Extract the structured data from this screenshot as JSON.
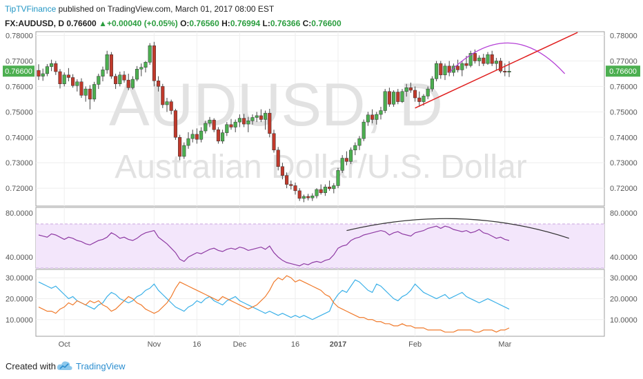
{
  "header": {
    "publisher": "TipTVFinance",
    "published_text": "published on TradingView.com, March 01, 2017 08:00 EST",
    "symbol": "FX:AUDUSD, D",
    "last": "0.76600",
    "change_arrow": "▲",
    "change": "+0.00040 (+0.05%)",
    "o_label": "O:",
    "o": "0.76560",
    "h_label": "H:",
    "h": "0.76994",
    "l_label": "L:",
    "l": "0.76366",
    "c_label": "C:",
    "c": "0.76600"
  },
  "watermark": {
    "symbol": "AUDUSD, D",
    "name": "Australian Dollar/U.S. Dollar"
  },
  "footer": {
    "created_with": "Created with",
    "brand": "TradingView"
  },
  "chart_data": [
    {
      "type": "candlestick",
      "ylim": [
        0.713,
        0.7815
      ],
      "yticks": [
        "0.78000",
        "0.77000",
        "0.76000",
        "0.75000",
        "0.74000",
        "0.73000",
        "0.72000"
      ],
      "price_label": "0.76600",
      "xtick_labels": [
        "Oct",
        "Nov",
        "16",
        "Dec",
        "16",
        "2017",
        "Feb",
        "Mar"
      ],
      "xtick_index": [
        6,
        27,
        37,
        47,
        60,
        70,
        88,
        109
      ],
      "candles": [
        [
          0.7663,
          0.7687,
          0.7625,
          0.764
        ],
        [
          0.764,
          0.767,
          0.7622,
          0.765
        ],
        [
          0.765,
          0.7688,
          0.764,
          0.7678
        ],
        [
          0.7678,
          0.7705,
          0.766,
          0.769
        ],
        [
          0.769,
          0.77,
          0.7645,
          0.7658
        ],
        [
          0.7658,
          0.7668,
          0.7592,
          0.761
        ],
        [
          0.761,
          0.7655,
          0.76,
          0.7645
        ],
        [
          0.7645,
          0.7672,
          0.762,
          0.7635
        ],
        [
          0.7635,
          0.7648,
          0.7595,
          0.7603
        ],
        [
          0.7603,
          0.7628,
          0.758,
          0.7618
        ],
        [
          0.7618,
          0.7632,
          0.7555,
          0.7565
        ],
        [
          0.7565,
          0.76,
          0.754,
          0.759
        ],
        [
          0.759,
          0.7605,
          0.751,
          0.755
        ],
        [
          0.755,
          0.7618,
          0.754,
          0.7608
        ],
        [
          0.7608,
          0.765,
          0.759,
          0.764
        ],
        [
          0.764,
          0.7678,
          0.762,
          0.7665
        ],
        [
          0.7665,
          0.774,
          0.765,
          0.7725
        ],
        [
          0.7725,
          0.7735,
          0.763,
          0.764
        ],
        [
          0.764,
          0.765,
          0.759,
          0.761
        ],
        [
          0.761,
          0.7658,
          0.76,
          0.7645
        ],
        [
          0.7645,
          0.766,
          0.7615,
          0.7625
        ],
        [
          0.7625,
          0.765,
          0.7585,
          0.7595
        ],
        [
          0.7595,
          0.764,
          0.7588,
          0.7628
        ],
        [
          0.7628,
          0.768,
          0.762,
          0.7668
        ],
        [
          0.7668,
          0.769,
          0.764,
          0.7675
        ],
        [
          0.7675,
          0.77,
          0.7655,
          0.7695
        ],
        [
          0.7695,
          0.777,
          0.7685,
          0.776
        ],
        [
          0.776,
          0.7775,
          0.76,
          0.7622
        ],
        [
          0.7622,
          0.764,
          0.758,
          0.76
        ],
        [
          0.76,
          0.761,
          0.7515,
          0.7528
        ],
        [
          0.7528,
          0.7555,
          0.75,
          0.754
        ],
        [
          0.754,
          0.7548,
          0.749,
          0.7505
        ],
        [
          0.7505,
          0.7512,
          0.739,
          0.74
        ],
        [
          0.74,
          0.741,
          0.731,
          0.7325
        ],
        [
          0.7325,
          0.738,
          0.7315,
          0.7368
        ],
        [
          0.7368,
          0.742,
          0.7355,
          0.7395
        ],
        [
          0.7395,
          0.743,
          0.738,
          0.7412
        ],
        [
          0.7412,
          0.7435,
          0.7375,
          0.7392
        ],
        [
          0.7392,
          0.744,
          0.738,
          0.7425
        ],
        [
          0.7425,
          0.7465,
          0.7415,
          0.7455
        ],
        [
          0.7455,
          0.748,
          0.744,
          0.7468
        ],
        [
          0.7468,
          0.7475,
          0.742,
          0.743
        ],
        [
          0.743,
          0.744,
          0.7375,
          0.7385
        ],
        [
          0.7385,
          0.743,
          0.7375,
          0.7418
        ],
        [
          0.7418,
          0.746,
          0.7405,
          0.745
        ],
        [
          0.745,
          0.7472,
          0.743,
          0.744
        ],
        [
          0.744,
          0.747,
          0.742,
          0.746
        ],
        [
          0.746,
          0.749,
          0.744,
          0.7475
        ],
        [
          0.7475,
          0.7492,
          0.744,
          0.7452
        ],
        [
          0.7452,
          0.748,
          0.742,
          0.7465
        ],
        [
          0.7465,
          0.749,
          0.745,
          0.7478
        ],
        [
          0.7478,
          0.75,
          0.746,
          0.7485
        ],
        [
          0.7485,
          0.751,
          0.746,
          0.747
        ],
        [
          0.747,
          0.7505,
          0.743,
          0.7495
        ],
        [
          0.7495,
          0.7512,
          0.74,
          0.7415
        ],
        [
          0.7415,
          0.743,
          0.734,
          0.735
        ],
        [
          0.735,
          0.7362,
          0.727,
          0.7285
        ],
        [
          0.7285,
          0.73,
          0.7235,
          0.725
        ],
        [
          0.725,
          0.7262,
          0.72,
          0.7215
        ],
        [
          0.7215,
          0.723,
          0.7195,
          0.721
        ],
        [
          0.721,
          0.7222,
          0.7175,
          0.719
        ],
        [
          0.719,
          0.72,
          0.715,
          0.716
        ],
        [
          0.716,
          0.7175,
          0.7145,
          0.7168
        ],
        [
          0.7168,
          0.7178,
          0.7152,
          0.7162
        ],
        [
          0.7162,
          0.718,
          0.715,
          0.717
        ],
        [
          0.717,
          0.72,
          0.716,
          0.7195
        ],
        [
          0.7195,
          0.7215,
          0.7175,
          0.7182
        ],
        [
          0.7182,
          0.7215,
          0.717,
          0.7205
        ],
        [
          0.7205,
          0.723,
          0.719,
          0.7198
        ],
        [
          0.7198,
          0.722,
          0.718,
          0.721
        ],
        [
          0.721,
          0.728,
          0.72,
          0.727
        ],
        [
          0.727,
          0.733,
          0.726,
          0.7318
        ],
        [
          0.7318,
          0.7345,
          0.729,
          0.7305
        ],
        [
          0.7305,
          0.736,
          0.7295,
          0.735
        ],
        [
          0.735,
          0.738,
          0.733,
          0.7368
        ],
        [
          0.7368,
          0.7405,
          0.735,
          0.7395
        ],
        [
          0.7395,
          0.747,
          0.7385,
          0.746
        ],
        [
          0.746,
          0.75,
          0.7445,
          0.7488
        ],
        [
          0.7488,
          0.751,
          0.7455,
          0.747
        ],
        [
          0.747,
          0.75,
          0.745,
          0.749
        ],
        [
          0.749,
          0.752,
          0.747,
          0.7505
        ],
        [
          0.7505,
          0.759,
          0.7495,
          0.758
        ],
        [
          0.758,
          0.7595,
          0.752,
          0.753
        ],
        [
          0.753,
          0.7585,
          0.752,
          0.7578
        ],
        [
          0.7578,
          0.759,
          0.753,
          0.754
        ],
        [
          0.754,
          0.759,
          0.7535,
          0.758
        ],
        [
          0.758,
          0.761,
          0.756,
          0.7595
        ],
        [
          0.7595,
          0.7615,
          0.7575,
          0.7585
        ],
        [
          0.7585,
          0.76,
          0.754,
          0.7555
        ],
        [
          0.7555,
          0.758,
          0.752,
          0.754
        ],
        [
          0.754,
          0.757,
          0.7525,
          0.7562
        ],
        [
          0.7562,
          0.76,
          0.755,
          0.759
        ],
        [
          0.759,
          0.764,
          0.758,
          0.763
        ],
        [
          0.763,
          0.77,
          0.762,
          0.769
        ],
        [
          0.769,
          0.77,
          0.763,
          0.7645
        ],
        [
          0.7645,
          0.769,
          0.7625,
          0.768
        ],
        [
          0.768,
          0.77,
          0.764,
          0.7655
        ],
        [
          0.7655,
          0.769,
          0.764,
          0.768
        ],
        [
          0.768,
          0.7705,
          0.7655,
          0.7665
        ],
        [
          0.7665,
          0.77,
          0.764,
          0.769
        ],
        [
          0.769,
          0.772,
          0.767,
          0.7682
        ],
        [
          0.7682,
          0.774,
          0.7675,
          0.773
        ],
        [
          0.773,
          0.7745,
          0.769,
          0.77
        ],
        [
          0.77,
          0.7722,
          0.768,
          0.7712
        ],
        [
          0.7712,
          0.7728,
          0.768,
          0.769
        ],
        [
          0.769,
          0.7735,
          0.7685,
          0.7725
        ],
        [
          0.7725,
          0.774,
          0.768,
          0.769
        ],
        [
          0.769,
          0.7712,
          0.7665,
          0.77
        ],
        [
          0.77,
          0.7712,
          0.7652,
          0.766
        ],
        [
          0.766,
          0.769,
          0.764,
          0.7656
        ],
        [
          0.7656,
          0.7699,
          0.7637,
          0.766
        ]
      ],
      "annotations": {
        "resistance_arc": {
          "points": [
            [
              96,
              0.7655
            ],
            [
              110,
              0.7775
            ],
            [
              123,
              0.765
            ]
          ],
          "color": "#b43fd6"
        },
        "trendline": {
          "points": [
            [
              88,
              0.7515
            ],
            [
              126,
              0.7812
            ]
          ],
          "color": "#e01f1f"
        }
      }
    },
    {
      "type": "line",
      "name": "RSI",
      "ylim": [
        30,
        85
      ],
      "yticks": [
        "80.0000",
        "40.0000"
      ],
      "band": [
        70,
        30
      ],
      "values": [
        60,
        59,
        58,
        61,
        60,
        58,
        56,
        58,
        57,
        55,
        54,
        52,
        51,
        53,
        55,
        56,
        58,
        62,
        60,
        57,
        58,
        56,
        55,
        57,
        60,
        62,
        63,
        64,
        58,
        55,
        52,
        48,
        44,
        38,
        36,
        40,
        42,
        44,
        43,
        45,
        47,
        48,
        46,
        45,
        47,
        48,
        47,
        49,
        48,
        46,
        47,
        48,
        49,
        47,
        50,
        44,
        40,
        37,
        35,
        34,
        33,
        32,
        34,
        33,
        35,
        36,
        35,
        37,
        38,
        42,
        48,
        50,
        51,
        55,
        57,
        58,
        60,
        61,
        62,
        63,
        64,
        63,
        60,
        62,
        63,
        61,
        60,
        59,
        62,
        63,
        64,
        66,
        67,
        68,
        66,
        68,
        67,
        65,
        64,
        63,
        64,
        62,
        63,
        65,
        62,
        61,
        59,
        57,
        58,
        56,
        55
      ],
      "annotations": {
        "arc": {
          "points": [
            [
              72,
              64
            ],
            [
              99,
              80
            ],
            [
              124,
              57
            ]
          ],
          "color": "#333333"
        }
      }
    },
    {
      "type": "line",
      "name": "DMI",
      "ylim": [
        2,
        34
      ],
      "yticks": [
        "30.0000",
        "20.0000",
        "10.0000"
      ],
      "series": [
        {
          "color": "#3ab0e8",
          "values": [
            28,
            27,
            26,
            25,
            26,
            24,
            22,
            20,
            21,
            19,
            18,
            17,
            16,
            15,
            17,
            18,
            21,
            23,
            22,
            20,
            19,
            18,
            19,
            21,
            22,
            24,
            25,
            27,
            24,
            22,
            20,
            18,
            16,
            15,
            14,
            16,
            17,
            19,
            18,
            20,
            21,
            19,
            18,
            17,
            19,
            20,
            21,
            19,
            18,
            17,
            16,
            15,
            14,
            13,
            14,
            13,
            12,
            13,
            12,
            11,
            12,
            11,
            12,
            11,
            10,
            11,
            12,
            13,
            14,
            19,
            22,
            24,
            23,
            26,
            29,
            28,
            26,
            24,
            23,
            27,
            26,
            24,
            22,
            20,
            19,
            21,
            22,
            24,
            27,
            25,
            23,
            22,
            21,
            20,
            21,
            22,
            20,
            21,
            22,
            23,
            21,
            20,
            19,
            18,
            19,
            20,
            19,
            18,
            17,
            16,
            15
          ]
        },
        {
          "color": "#f07a2b",
          "values": [
            16,
            15,
            14,
            14,
            13,
            15,
            16,
            18,
            17,
            19,
            18,
            17,
            19,
            18,
            19,
            17,
            16,
            14,
            15,
            17,
            19,
            21,
            20,
            18,
            17,
            15,
            14,
            13,
            14,
            16,
            18,
            21,
            25,
            28,
            27,
            26,
            25,
            24,
            23,
            22,
            21,
            20,
            19,
            21,
            20,
            19,
            18,
            17,
            16,
            15,
            16,
            17,
            19,
            21,
            24,
            28,
            30,
            29,
            31,
            30,
            28,
            29,
            28,
            27,
            26,
            25,
            24,
            22,
            21,
            18,
            16,
            15,
            14,
            13,
            12,
            11,
            11,
            10,
            10,
            9,
            9,
            8,
            8,
            7,
            7,
            8,
            7,
            7,
            6,
            6,
            6,
            5,
            5,
            5,
            5,
            4,
            4,
            4,
            5,
            5,
            5,
            5,
            4,
            4,
            5,
            5,
            5,
            4,
            5,
            5,
            6
          ]
        }
      ]
    }
  ]
}
